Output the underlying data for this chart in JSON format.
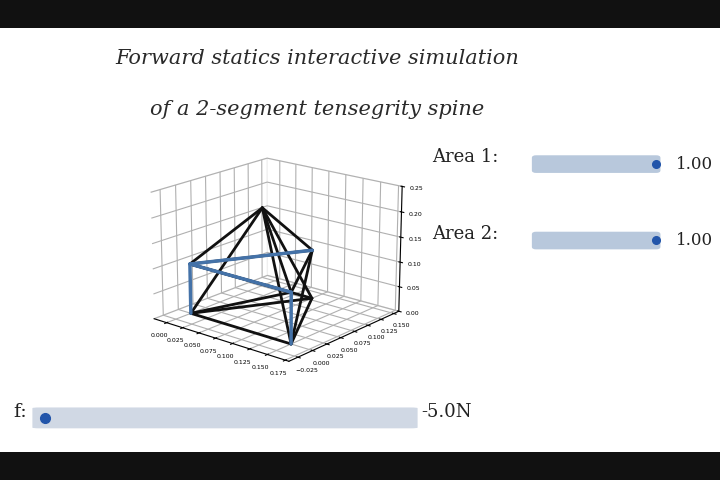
{
  "title_line1": "Forward statics interactive simulation",
  "title_line2": "of a 2-segment tensegrity spine",
  "title_fontsize": 15,
  "title_color": "#2a2a2a",
  "slider_label_f": "f:",
  "slider_value_f": "-5.0N",
  "slider_label_area1": "Area 1:",
  "slider_value_area1": "1.00",
  "slider_label_area2": "Area 2:",
  "slider_value_area2": "1.00",
  "slider_bar_color": "#b8c8dc",
  "slider_dot_color": "#2255aa",
  "top_bar_color": "#111111",
  "bottom_bar_color": "#111111",
  "blue_color": "#4472a8",
  "black_color": "#111111",
  "view_elev": 18,
  "view_azim": -50
}
